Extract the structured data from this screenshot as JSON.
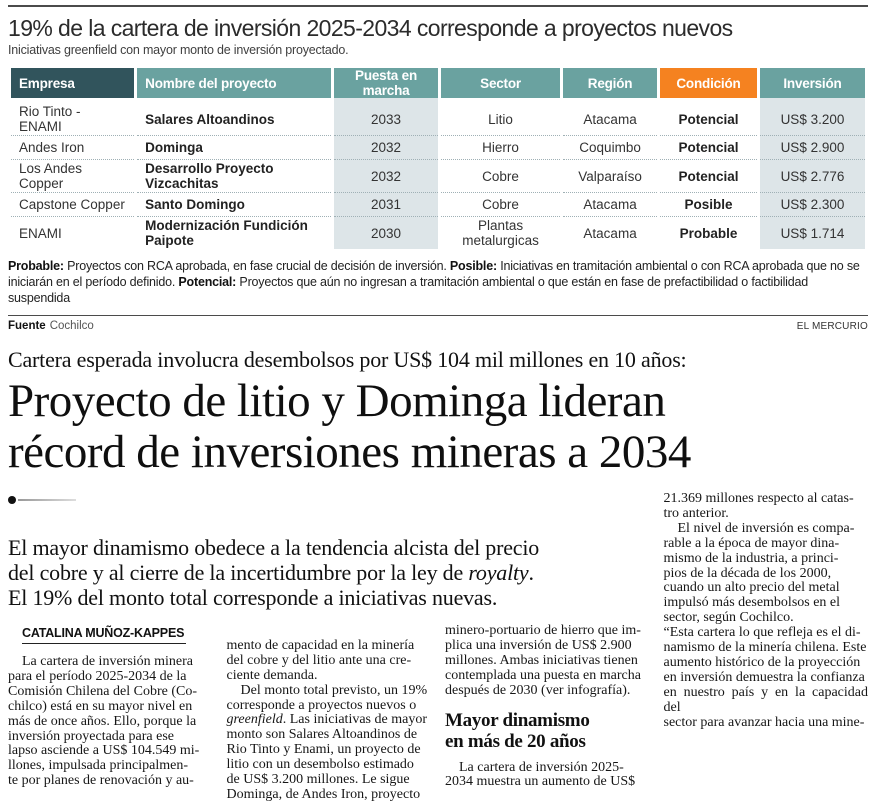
{
  "infographic": {
    "title": "19% de la cartera de inversión 2025-2034 corresponde a proyectos nuevos",
    "subtitle": "Iniciativas greenfield con mayor monto de inversión proyectado.",
    "table": {
      "columns": [
        "Empresa",
        "Nombre del proyecto",
        "Puesta en marcha",
        "Sector",
        "Región",
        "Condición",
        "Inversión"
      ],
      "rows": [
        [
          "Rio Tinto - ENAMI",
          "Salares Altoandinos",
          "2033",
          "Litio",
          "Atacama",
          "Potencial",
          "US$ 3.200"
        ],
        [
          "Andes Iron",
          "Dominga",
          "2032",
          "Hierro",
          "Coquimbo",
          "Potencial",
          "US$ 2.900"
        ],
        [
          "Los Andes Copper",
          "Desarrollo Proyecto Vizcachitas",
          "2032",
          "Cobre",
          "Valparaíso",
          "Potencial",
          "US$ 2.776"
        ],
        [
          "Capstone Copper",
          "Santo Domingo",
          "2031",
          "Cobre",
          "Atacama",
          "Posible",
          "US$ 2.300"
        ],
        [
          "ENAMI",
          "Modernización Fundición Paipote",
          "2030",
          "Plantas metalurgicas",
          "Atacama",
          "Probable",
          "US$ 1.714"
        ]
      ]
    },
    "footnote": {
      "probable_label": "Probable:",
      "probable_text": " Proyectos con RCA aprobada, en fase crucial de decisión de inversión.  ",
      "posible_label": "Posible:",
      "posible_text": " Iniciativas en tramitación ambiental o con RCA aprobada que no se iniciarán en el período definido.  ",
      "potencial_label": "Potencial:",
      "potencial_text": " Proyectos que aún no ingresan a tramitación ambiental o que están en fase de prefactibilidad o factibilidad suspendida"
    },
    "source_label": "Fuente",
    "source_value": "Cochilco",
    "credit": "EL MERCURIO",
    "colors": {
      "header_dark_teal": "#31545c",
      "header_teal": "#6aa2a0",
      "condition_orange": "#f58220",
      "shaded_column": "#dde5e8"
    }
  },
  "article": {
    "kicker": "Cartera esperada involucra desembolsos por US$ 104 mil millones en 10 años:",
    "headline": "Proyecto de litio y Dominga lideran\nrécord de inversiones mineras a 2034",
    "lead": {
      "before": "El mayor dinamismo obedece a la tendencia alcista del precio\ndel cobre y al cierre de la incertidumbre por la ley de ",
      "royalty": "royalty",
      "after": ".\nEl 19% del monto total corresponde a iniciativas nuevas."
    },
    "byline": "CATALINA MUÑOZ-KAPPES",
    "columns": {
      "col1": " La cartera de inversión minera\npara el período 2025-2034 de la\nComisión Chilena del Cobre (Co-\nchilco) está en su mayor nivel en\nmás de once años. Ello, porque la\ninversión proyectada para ese\nlapso asciende a US$ 104.549 mi-\nllones, impulsada principalmen-\nte por planes de renovación y au-",
      "col2_before": "mento de capacidad en la minería\ndel cobre y del litio ante una cre-\nciente demanda.\n Del monto total previsto, un 19%\ncorresponde a proyectos nuevos o\n",
      "col2_italic": "greenfield",
      "col2_after": ". Las iniciativas de mayor\nmonto son Salares Altoandinos de\nRio Tinto y Enami, un proyecto de\nlitio con un desembolso estimado\nde US$ 3.200 millones. Le sigue\nDominga, de Andes Iron, proyecto",
      "col3_para1": "minero-portuario de hierro que im-\nplica una inversión de US$ 2.900\nmillones. Ambas iniciativas tienen\ncontemplada una puesta en marcha\ndespués de 2030 (ver infografía).",
      "col3_subhead": "Mayor dinamismo\nen más de 20 años",
      "col3_para2": " La cartera de inversión 2025-\n2034 muestra un aumento de US$",
      "col4": "21.369 millones respecto al catas-\ntro anterior.\n El nivel de inversión es compa-\nrable a la época de mayor dina-\nmismo de la industria, a princi-\npios de la década de los 2000,\ncuando un alto precio del metal\nimpulsó más desembolsos en el\nsector, según Cochilco.\n“Esta cartera lo que refleja es el di-\nnamismo de la minería chilena. Este\naumento histórico de la proyección\nen inversión demuestra la confianza\nen nuestro país y en la capacidad del\nsector para avanzar hacia una mine-"
    }
  }
}
